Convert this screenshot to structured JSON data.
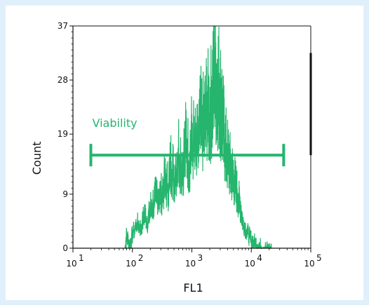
{
  "chart_data": {
    "type": "area",
    "xlabel": "FL1",
    "ylabel": "Count",
    "x_scale": "log",
    "xlim": [
      10,
      100000
    ],
    "ylim": [
      0,
      37
    ],
    "y_ticks": [
      0,
      9,
      19,
      28,
      37
    ],
    "y_tick_labels": [
      "0",
      "9",
      "19",
      "28",
      "37"
    ],
    "x_ticks": [
      10,
      100,
      1000,
      10000,
      100000
    ],
    "x_tick_labels": [
      {
        "base": "10",
        "exp": "1"
      },
      {
        "base": "10",
        "exp": "2"
      },
      {
        "base": "10",
        "exp": "3"
      },
      {
        "base": "10",
        "exp": "4"
      },
      {
        "base": "10",
        "exp": "5"
      }
    ],
    "series_color": "#25b56d",
    "histogram": [
      {
        "x": 75,
        "y": 0
      },
      {
        "x": 80,
        "y": 3
      },
      {
        "x": 90,
        "y": 1
      },
      {
        "x": 100,
        "y": 3
      },
      {
        "x": 120,
        "y": 5
      },
      {
        "x": 140,
        "y": 4
      },
      {
        "x": 160,
        "y": 7
      },
      {
        "x": 180,
        "y": 5
      },
      {
        "x": 200,
        "y": 8
      },
      {
        "x": 230,
        "y": 9
      },
      {
        "x": 260,
        "y": 11
      },
      {
        "x": 300,
        "y": 10
      },
      {
        "x": 350,
        "y": 13
      },
      {
        "x": 400,
        "y": 12
      },
      {
        "x": 450,
        "y": 17
      },
      {
        "x": 500,
        "y": 14
      },
      {
        "x": 600,
        "y": 19
      },
      {
        "x": 700,
        "y": 16
      },
      {
        "x": 800,
        "y": 21
      },
      {
        "x": 900,
        "y": 17
      },
      {
        "x": 1000,
        "y": 22
      },
      {
        "x": 1200,
        "y": 19
      },
      {
        "x": 1400,
        "y": 25
      },
      {
        "x": 1600,
        "y": 24
      },
      {
        "x": 1800,
        "y": 28
      },
      {
        "x": 2000,
        "y": 26
      },
      {
        "x": 2200,
        "y": 30
      },
      {
        "x": 2400,
        "y": 37
      },
      {
        "x": 2600,
        "y": 31
      },
      {
        "x": 2800,
        "y": 32
      },
      {
        "x": 3000,
        "y": 29
      },
      {
        "x": 3200,
        "y": 27
      },
      {
        "x": 3500,
        "y": 22
      },
      {
        "x": 3800,
        "y": 19
      },
      {
        "x": 4200,
        "y": 17
      },
      {
        "x": 4600,
        "y": 15
      },
      {
        "x": 5000,
        "y": 14
      },
      {
        "x": 5500,
        "y": 12
      },
      {
        "x": 6000,
        "y": 10
      },
      {
        "x": 6600,
        "y": 8
      },
      {
        "x": 7200,
        "y": 5
      },
      {
        "x": 8000,
        "y": 4
      },
      {
        "x": 9000,
        "y": 3
      },
      {
        "x": 10000,
        "y": 2
      },
      {
        "x": 11500,
        "y": 1.5
      },
      {
        "x": 13000,
        "y": 1
      },
      {
        "x": 15000,
        "y": 0.7
      },
      {
        "x": 17000,
        "y": 0.4
      },
      {
        "x": 20000,
        "y": 0.3
      },
      {
        "x": 22000,
        "y": 0
      }
    ],
    "gate": {
      "label": "Viability",
      "x_start": 20,
      "x_end": 35000,
      "y": 15.5,
      "color": "#25b56d"
    }
  }
}
